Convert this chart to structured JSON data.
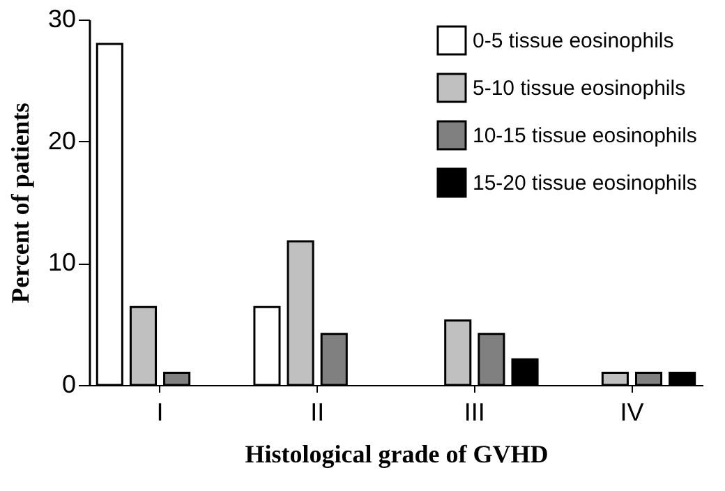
{
  "chart_data": {
    "type": "bar",
    "xlabel": "Histological grade of GVHD",
    "ylabel": "Percent of patients",
    "categories": [
      "I",
      "II",
      "III",
      "IV"
    ],
    "series": [
      {
        "name": "0-5 tissue eosinophils",
        "color": "#ffffff",
        "values": [
          28,
          6.4,
          null,
          null
        ]
      },
      {
        "name": "5-10 tissue eosinophils",
        "color": "#c0c0c0",
        "values": [
          6.4,
          11.8,
          5.3,
          1
        ]
      },
      {
        "name": "10-15 tissue eosinophils",
        "color": "#808080",
        "values": [
          1,
          4.2,
          4.2,
          1
        ]
      },
      {
        "name": "15-20 tissue eosinophils",
        "color": "#000000",
        "values": [
          null,
          null,
          2.1,
          1
        ]
      }
    ],
    "ylim": [
      0,
      30
    ],
    "yticks": [
      0,
      10,
      20,
      30
    ],
    "grid": false,
    "legend": "top right"
  }
}
